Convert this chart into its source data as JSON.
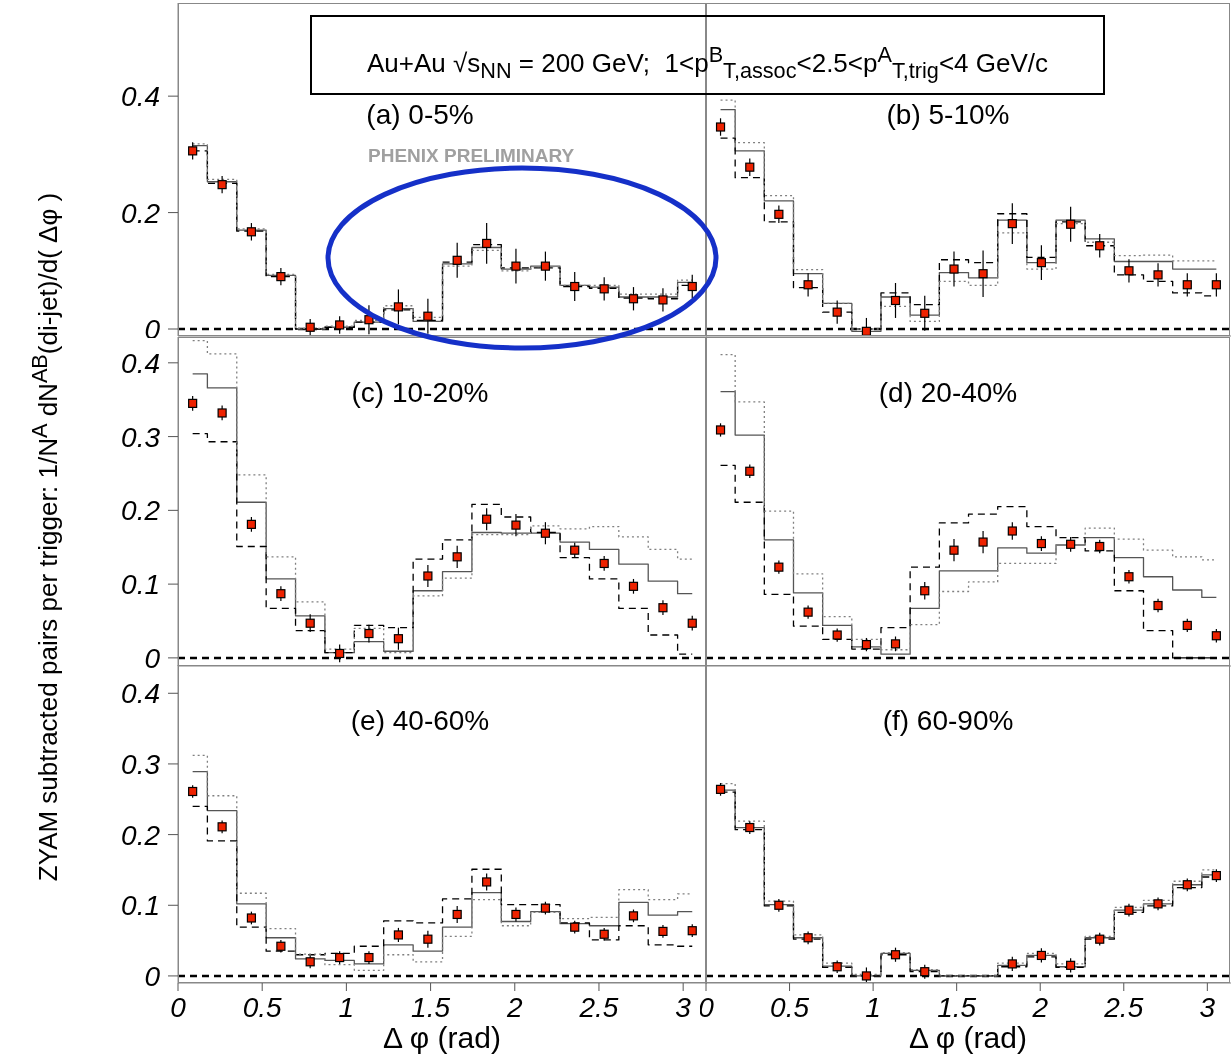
{
  "chart_data": [
    {
      "type": "scatter",
      "title": "(a) 0-5%",
      "annotations": [
        "Au+Au √s$_{NN}$ = 200 GeV;  1<p$^{B}$$_{T,assoc}$<2.5<p$^{A}$$_{T,trig}$<4 GeV/c",
        "PHENIX PRELIMINARY"
      ],
      "tick_labels": "y",
      "x": [
        0.087,
        0.262,
        0.436,
        0.611,
        0.785,
        0.96,
        1.134,
        1.309,
        1.484,
        1.658,
        1.833,
        2.007,
        2.182,
        2.356,
        2.531,
        2.705,
        2.88,
        3.054
      ],
      "xlim": [
        0,
        3.1416
      ],
      "xticks": [
        0,
        0.5,
        1,
        1.5,
        2,
        2.5,
        3
      ],
      "ylim": [
        -0.012,
        0.56
      ],
      "yticks": [
        0,
        0.2,
        0.4
      ],
      "ref_lines": [
        {
          "axis": "y",
          "value": 0,
          "line_style": "dashed",
          "color": "#000000"
        }
      ],
      "series": [
        {
          "type": "scatter",
          "color": "#ee2200",
          "marker": "square",
          "values": [
            0.306,
            0.248,
            0.167,
            0.09,
            0.003,
            0.007,
            0.016,
            0.038,
            0.022,
            0.118,
            0.147,
            0.108,
            0.108,
            0.073,
            0.069,
            0.052,
            0.05,
            0.073
          ],
          "errors": [
            0.015,
            0.015,
            0.015,
            0.015,
            0.014,
            0.015,
            0.025,
            0.03,
            0.03,
            0.03,
            0.035,
            0.03,
            0.025,
            0.025,
            0.02,
            0.02,
            0.02,
            0.02
          ]
        },
        {
          "type": "step",
          "color": "#555555",
          "line_style": "solid",
          "values": [
            0.315,
            0.253,
            0.17,
            0.092,
            0,
            0.003,
            0.012,
            0.035,
            0.013,
            0.112,
            0.14,
            0.103,
            0.108,
            0.075,
            0.072,
            0.055,
            0.055,
            0.08
          ]
        },
        {
          "type": "step",
          "color": "#000000",
          "line_style": "dashed",
          "values": [
            0.306,
            0.25,
            0.168,
            0.09,
            0,
            0.003,
            0.012,
            0.033,
            0.015,
            0.115,
            0.145,
            0.105,
            0.105,
            0.073,
            0.07,
            0.053,
            0.052,
            0.075
          ]
        },
        {
          "type": "step",
          "color": "#808080",
          "line_style": "dotted",
          "values": [
            0.318,
            0.257,
            0.172,
            0.094,
            0.001,
            0.005,
            0.015,
            0.04,
            0.02,
            0.108,
            0.135,
            0.1,
            0.107,
            0.075,
            0.075,
            0.06,
            0.06,
            0.084
          ]
        }
      ]
    },
    {
      "type": "scatter",
      "title": "(b) 5-10%",
      "tick_labels": false,
      "x": [
        0.087,
        0.262,
        0.436,
        0.611,
        0.785,
        0.96,
        1.134,
        1.309,
        1.484,
        1.658,
        1.833,
        2.007,
        2.182,
        2.356,
        2.531,
        2.705,
        2.88,
        3.054
      ],
      "xlim": [
        0,
        3.1416
      ],
      "xticks": [
        0,
        0.5,
        1,
        1.5,
        2,
        2.5,
        3
      ],
      "ylim": [
        -0.012,
        0.56
      ],
      "yticks": [
        0,
        0.2,
        0.4
      ],
      "ref_lines": [
        {
          "axis": "y",
          "value": 0,
          "line_style": "dashed",
          "color": "#000000"
        }
      ],
      "series": [
        {
          "type": "scatter",
          "color": "#ee2200",
          "marker": "square",
          "values": [
            0.347,
            0.278,
            0.197,
            0.076,
            0.029,
            -0.004,
            0.049,
            0.027,
            0.103,
            0.095,
            0.181,
            0.114,
            0.18,
            0.143,
            0.1,
            0.093,
            0.076,
            0.076
          ],
          "errors": [
            0.015,
            0.015,
            0.015,
            0.02,
            0.02,
            [
              -0.012,
              0.019
            ],
            0.03,
            0.03,
            0.03,
            0.04,
            0.035,
            0.03,
            0.03,
            0.02,
            0.02,
            0.02,
            0.02,
            0.02
          ]
        },
        {
          "type": "step",
          "color": "#555555",
          "line_style": "solid",
          "values": [
            0.377,
            0.306,
            0.22,
            0.095,
            0.044,
            -0.004,
            0.055,
            0.024,
            0.097,
            0.088,
            0.187,
            0.114,
            0.187,
            0.155,
            0.116,
            0.116,
            0.103,
            0.103
          ]
        },
        {
          "type": "step",
          "color": "#000000",
          "line_style": "dashed",
          "values": [
            0.328,
            0.26,
            0.184,
            0.071,
            0.029,
            0,
            0.062,
            0.042,
            0.119,
            0.114,
            0.198,
            0.123,
            0.184,
            0.143,
            0.093,
            0.082,
            0.062,
            0.057
          ]
        },
        {
          "type": "step",
          "color": "#808080",
          "line_style": "dotted",
          "values": [
            0.393,
            0.32,
            0.229,
            0.102,
            0.044,
            0,
            0.039,
            0.013,
            0.082,
            0.075,
            0.165,
            0.103,
            0.181,
            0.149,
            0.126,
            0.127,
            0.117,
            0.117
          ]
        }
      ]
    },
    {
      "type": "scatter",
      "title": "(c) 10-20%",
      "ylabel": "ZYAM subtracted pairs per trigger: 1/N$^{A}$ dN$^{AB}$(di-jet)/d( Δφ )",
      "tick_labels": "y",
      "x": [
        0.087,
        0.262,
        0.436,
        0.611,
        0.785,
        0.96,
        1.134,
        1.309,
        1.484,
        1.658,
        1.833,
        2.007,
        2.182,
        2.356,
        2.531,
        2.705,
        2.88,
        3.054
      ],
      "xlim": [
        0,
        3.1416
      ],
      "xticks": [
        0,
        0.5,
        1,
        1.5,
        2,
        2.5,
        3
      ],
      "ylim": [
        -0.011,
        0.435
      ],
      "yticks": [
        0,
        0.1,
        0.2,
        0.3,
        0.4
      ],
      "ref_lines": [
        {
          "axis": "y",
          "value": 0,
          "line_style": "dashed",
          "color": "#000000"
        }
      ],
      "series": [
        {
          "type": "scatter",
          "color": "#ee2200",
          "marker": "square",
          "values": [
            0.345,
            0.332,
            0.181,
            0.087,
            0.047,
            0.006,
            0.033,
            0.026,
            0.111,
            0.137,
            0.188,
            0.18,
            0.169,
            0.146,
            0.128,
            0.097,
            0.068,
            0.047
          ],
          "errors": [
            0.01,
            0.01,
            0.01,
            0.01,
            0.012,
            0.012,
            0.012,
            0.015,
            0.015,
            0.015,
            0.015,
            0.015,
            0.015,
            0.01,
            0.01,
            0.01,
            0.01,
            0.01
          ]
        },
        {
          "type": "step",
          "color": "#555555",
          "line_style": "solid",
          "values": [
            0.385,
            0.366,
            0.211,
            0.107,
            0.057,
            0.007,
            0.022,
            0.009,
            0.091,
            0.117,
            0.17,
            0.169,
            0.169,
            0.157,
            0.147,
            0.127,
            0.104,
            0.087
          ]
        },
        {
          "type": "step",
          "color": "#000000",
          "line_style": "dashed",
          "values": [
            0.304,
            0.293,
            0.151,
            0.067,
            0.037,
            0.007,
            0.044,
            0.041,
            0.134,
            0.16,
            0.208,
            0.191,
            0.17,
            0.136,
            0.107,
            0.067,
            0.031,
            0.005
          ]
        },
        {
          "type": "step",
          "color": "#808080",
          "line_style": "dotted",
          "values": [
            0.43,
            0.412,
            0.248,
            0.137,
            0.076,
            0.012,
            0.04,
            0.007,
            0.084,
            0.108,
            0.167,
            0.167,
            0.179,
            0.175,
            0.178,
            0.164,
            0.147,
            0.134
          ]
        }
      ]
    },
    {
      "type": "scatter",
      "title": "(d) 20-40%",
      "tick_labels": false,
      "x": [
        0.087,
        0.262,
        0.436,
        0.611,
        0.785,
        0.96,
        1.134,
        1.309,
        1.484,
        1.658,
        1.833,
        2.007,
        2.182,
        2.356,
        2.531,
        2.705,
        2.88,
        3.054
      ],
      "xlim": [
        0,
        3.1416
      ],
      "xticks": [
        0,
        0.5,
        1,
        1.5,
        2,
        2.5,
        3
      ],
      "ylim": [
        -0.011,
        0.435
      ],
      "yticks": [
        0,
        0.1,
        0.2,
        0.3,
        0.4
      ],
      "ref_lines": [
        {
          "axis": "y",
          "value": 0,
          "line_style": "dashed",
          "color": "#000000"
        }
      ],
      "series": [
        {
          "type": "scatter",
          "color": "#ee2200",
          "marker": "square",
          "values": [
            0.309,
            0.253,
            0.123,
            0.062,
            0.031,
            0.018,
            0.019,
            0.091,
            0.146,
            0.157,
            0.172,
            0.155,
            0.154,
            0.151,
            0.11,
            0.071,
            0.044,
            0.03
          ],
          "errors": [
            0.009,
            0.009,
            0.009,
            0.009,
            0.009,
            0.009,
            0.01,
            0.012,
            0.015,
            0.015,
            0.012,
            0.01,
            0.01,
            0.009,
            0.009,
            0.009,
            0.009,
            0.009
          ]
        },
        {
          "type": "step",
          "color": "#555555",
          "line_style": "solid",
          "values": [
            0.361,
            0.302,
            0.16,
            0.088,
            0.044,
            0.015,
            0.005,
            0.067,
            0.118,
            0.118,
            0.149,
            0.142,
            0.153,
            0.163,
            0.136,
            0.11,
            0.092,
            0.082
          ]
        },
        {
          "type": "step",
          "color": "#000000",
          "line_style": "dashed",
          "values": [
            0.261,
            0.211,
            0.086,
            0.043,
            0.025,
            0.012,
            0.041,
            0.123,
            0.183,
            0.195,
            0.205,
            0.178,
            0.163,
            0.145,
            0.091,
            0.037,
            0,
            0
          ]
        },
        {
          "type": "step",
          "color": "#808080",
          "line_style": "dotted",
          "values": [
            0.411,
            0.347,
            0.199,
            0.114,
            0.056,
            0.025,
            0.011,
            0.045,
            0.09,
            0.103,
            0.128,
            0.128,
            0.153,
            0.176,
            0.161,
            0.146,
            0.137,
            0.133
          ]
        }
      ]
    },
    {
      "type": "scatter",
      "title": "(e) 40-60%",
      "xlabel": "Δ φ (rad)",
      "x": [
        0.087,
        0.262,
        0.436,
        0.611,
        0.785,
        0.96,
        1.134,
        1.309,
        1.484,
        1.658,
        1.833,
        2.007,
        2.182,
        2.356,
        2.531,
        2.705,
        2.88,
        3.054
      ],
      "xlim": [
        0,
        3.1416
      ],
      "xticks": [
        0,
        0.5,
        1,
        1.5,
        2,
        2.5,
        3
      ],
      "ylim": [
        -0.01,
        0.44
      ],
      "yticks": [
        0,
        0.1,
        0.2,
        0.3,
        0.4
      ],
      "ref_lines": [
        {
          "axis": "y",
          "value": 0,
          "line_style": "dashed",
          "color": "#000000"
        }
      ],
      "series": [
        {
          "type": "scatter",
          "color": "#ee2200",
          "marker": "square",
          "values": [
            0.261,
            0.211,
            0.082,
            0.042,
            0.02,
            0.026,
            0.026,
            0.058,
            0.052,
            0.087,
            0.133,
            0.087,
            0.096,
            0.069,
            0.059,
            0.085,
            0.063,
            0.064
          ],
          "errors": [
            0.009,
            0.009,
            0.009,
            0.009,
            0.009,
            0.009,
            0.009,
            0.01,
            0.012,
            0.012,
            0.012,
            0.01,
            0.009,
            0.009,
            0.009,
            0.009,
            0.009,
            0.009
          ]
        },
        {
          "type": "step",
          "color": "#555555",
          "line_style": "solid",
          "values": [
            0.289,
            0.234,
            0.102,
            0.054,
            0.024,
            0.022,
            0.017,
            0.044,
            0.035,
            0.069,
            0.118,
            0.077,
            0.091,
            0.074,
            0.071,
            0.104,
            0.086,
            0.091
          ]
        },
        {
          "type": "step",
          "color": "#000000",
          "line_style": "dashed",
          "values": [
            0.24,
            0.191,
            0.069,
            0.035,
            0.03,
            0.032,
            0.042,
            0.078,
            0.075,
            0.109,
            0.151,
            0.101,
            0.101,
            0.075,
            0.051,
            0.071,
            0.044,
            0.042
          ]
        },
        {
          "type": "step",
          "color": "#808080",
          "line_style": "dotted",
          "values": [
            0.312,
            0.255,
            0.117,
            0.067,
            0.031,
            0.016,
            0.008,
            0.03,
            0.02,
            0.056,
            0.108,
            0.071,
            0.09,
            0.081,
            0.083,
            0.122,
            0.108,
            0.116
          ]
        }
      ]
    },
    {
      "type": "scatter",
      "title": "(f) 60-90%",
      "xlabel": "Δ φ (rad)",
      "tick_labels": "x",
      "x": [
        0.087,
        0.262,
        0.436,
        0.611,
        0.785,
        0.96,
        1.134,
        1.309,
        1.484,
        1.658,
        1.833,
        2.007,
        2.182,
        2.356,
        2.531,
        2.705,
        2.88,
        3.054
      ],
      "xlim": [
        0,
        3.1416
      ],
      "xticks": [
        0,
        0.5,
        1,
        1.5,
        2,
        2.5,
        3
      ],
      "ylim": [
        -0.01,
        0.44
      ],
      "yticks": [
        0,
        0.1,
        0.2,
        0.3,
        0.4
      ],
      "ref_lines": [
        {
          "axis": "y",
          "value": 0,
          "line_style": "dashed",
          "color": "#000000"
        }
      ],
      "series": [
        {
          "type": "scatter",
          "color": "#ee2200",
          "marker": "square",
          "values": [
            0.264,
            0.21,
            0.1,
            0.054,
            0.013,
            0,
            0.03,
            0.006,
            null,
            null,
            0.017,
            0.029,
            0.015,
            0.052,
            0.093,
            0.102,
            0.129,
            0.142
          ],
          "errors": [
            0.009,
            0.009,
            0.009,
            0.009,
            0.009,
            [
              -0.01,
              0.012
            ],
            0.01,
            0.01,
            null,
            null,
            0.01,
            0.01,
            0.01,
            0.009,
            0.009,
            0.009,
            0.009,
            0.009
          ]
        },
        {
          "type": "step",
          "color": "#555555",
          "line_style": "solid",
          "values": [
            0.263,
            0.21,
            0.101,
            0.054,
            0.014,
            0,
            0.032,
            0.008,
            0,
            0,
            0.015,
            0.029,
            0.013,
            0.054,
            0.093,
            0.102,
            0.129,
            0.143
          ]
        },
        {
          "type": "step",
          "color": "#000000",
          "line_style": "dashed",
          "values": [
            0.26,
            0.207,
            0.099,
            0.052,
            0.012,
            0,
            0.03,
            0.006,
            0,
            0,
            0.013,
            0.027,
            0.012,
            0.052,
            0.09,
            0.099,
            0.125,
            0.14
          ]
        },
        {
          "type": "step",
          "color": "#808080",
          "line_style": "dotted",
          "values": [
            0.272,
            0.219,
            0.106,
            0.058,
            0.018,
            0.002,
            0.033,
            0.009,
            0,
            0,
            0.018,
            0.032,
            0.017,
            0.056,
            0.097,
            0.107,
            0.134,
            0.15
          ]
        }
      ]
    }
  ]
}
